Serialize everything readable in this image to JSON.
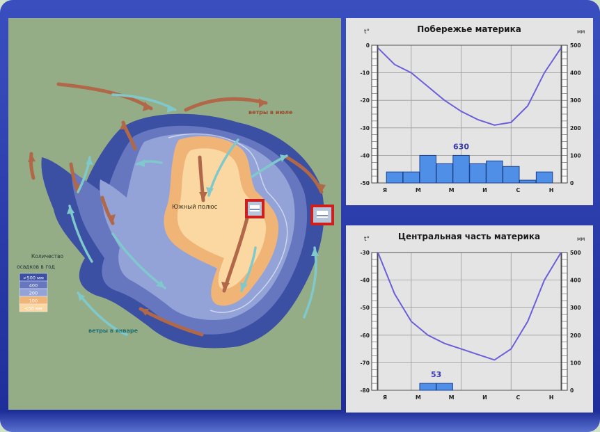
{
  "map": {
    "labels": {
      "south_pole": "Южный полюс",
      "winds_july": "ветры в июле",
      "winds_january": "ветры в январе"
    },
    "legend": {
      "title_line1": "Количество",
      "title_line2": "осадков в год",
      "items": [
        {
          "label": ">500 мм",
          "color": "#3b4fa3"
        },
        {
          "label": "400",
          "color": "#6677c0"
        },
        {
          "label": "200",
          "color": "#93a3d8"
        },
        {
          "label": "100",
          "color": "#f0b477"
        },
        {
          "label": "<50 мм",
          "color": "#fbd7a1"
        }
      ]
    },
    "colors": {
      "ocean": "#94ad87",
      "july_wind": "#b06848",
      "january_wind": "#7fc8cc",
      "marker": "#cc2020"
    }
  },
  "chart_data": [
    {
      "type": "line",
      "title": "Побережье материка",
      "y_left_label": "t°",
      "y_right_label": "мм",
      "months": [
        "Я",
        "М",
        "М",
        "И",
        "С",
        "Н"
      ],
      "temperature": {
        "months_index": [
          1,
          2,
          3,
          4,
          5,
          6,
          7,
          8,
          9,
          10,
          11,
          12
        ],
        "values": [
          -1,
          -7,
          -10,
          -15,
          -20,
          -24,
          -27,
          -29,
          -28,
          -22,
          -10,
          -1
        ],
        "ylim": [
          -50,
          0
        ],
        "ticks": [
          0,
          -10,
          -20,
          -30,
          -40,
          -50
        ]
      },
      "precipitation": {
        "months_index": [
          2,
          3,
          4,
          5,
          6,
          7,
          8,
          9,
          10,
          11,
          12
        ],
        "values": [
          40,
          40,
          100,
          70,
          100,
          70,
          80,
          60,
          10,
          40,
          0
        ],
        "ylim": [
          0,
          500
        ],
        "ticks": [
          500,
          400,
          300,
          200,
          100,
          0
        ],
        "total": "630"
      }
    },
    {
      "type": "line",
      "title": "Центральная часть материка",
      "y_left_label": "t°",
      "y_right_label": "мм",
      "months": [
        "Я",
        "М",
        "М",
        "И",
        "С",
        "Н"
      ],
      "temperature": {
        "months_index": [
          1,
          2,
          3,
          4,
          5,
          6,
          7,
          8,
          9,
          10,
          11,
          12
        ],
        "values": [
          -30,
          -45,
          -55,
          -60,
          -63,
          -65,
          -67,
          -69,
          -65,
          -55,
          -40,
          -30
        ],
        "ylim": [
          -80,
          -30
        ],
        "ticks": [
          -30,
          -40,
          -50,
          -60,
          -70,
          -80
        ]
      },
      "precipitation": {
        "months_index": [
          4,
          5
        ],
        "values": [
          25,
          25
        ],
        "ylim": [
          0,
          500
        ],
        "ticks": [
          500,
          400,
          300,
          200,
          100,
          0
        ],
        "total": "53"
      }
    }
  ]
}
